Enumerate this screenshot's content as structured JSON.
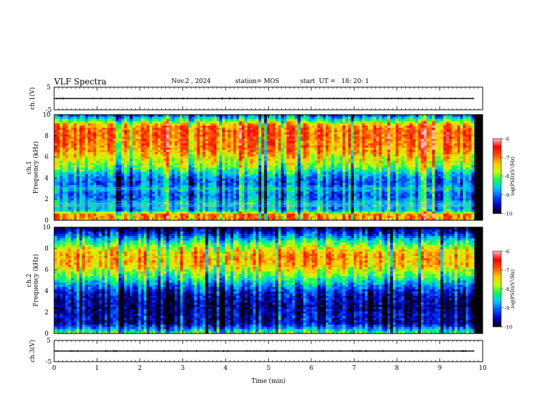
{
  "header": {
    "title": "VLF Spectra",
    "date": "Nov.2  , 2024",
    "station": "station= MOS",
    "start_ut": "start  UT =   18: 20: 1"
  },
  "colors": {
    "spectrogram_colormap": [
      "#000000",
      "#0000cc",
      "#0050ff",
      "#00c8ff",
      "#00ff60",
      "#c8ff00",
      "#ffc800",
      "#ff5000",
      "#ff0000",
      "#ffc0c0"
    ],
    "axis": "#000000",
    "background": "#ffffff"
  },
  "chart_data": [
    {
      "type": "line",
      "panel": "ch1-voltage",
      "ylabel": "ch.1(V)",
      "ylim": [
        -5,
        5
      ],
      "yticks": [
        "5",
        "-5"
      ],
      "x": [
        0,
        9.8
      ],
      "values": [
        0,
        0
      ],
      "xlim": [
        0,
        10
      ]
    },
    {
      "type": "heatmap",
      "panel": "ch1-spectrogram",
      "ylabel": "ch.1\nFrequency (kHz)",
      "ylim": [
        0,
        10
      ],
      "yticks": [
        "0",
        "2",
        "4",
        "6",
        "8",
        "10"
      ],
      "xlim": [
        0,
        10
      ],
      "x_extent": [
        0,
        9.8
      ],
      "colorbar": {
        "label": "log(PSD)(V²/Hz)",
        "range": [
          -10,
          -6
        ],
        "ticks": [
          "-6",
          "-7",
          "-8",
          "-9",
          "-10"
        ]
      },
      "profile": {
        "freq_khz": [
          0,
          0.5,
          1,
          1.5,
          2,
          2.5,
          3,
          3.5,
          4,
          4.5,
          5,
          5.5,
          6,
          6.5,
          7,
          7.5,
          8,
          8.5,
          9,
          9.5,
          10
        ],
        "mean_log_psd": [
          -7.2,
          -7.0,
          -8.8,
          -8.4,
          -8.9,
          -9.0,
          -8.6,
          -9.1,
          -8.9,
          -8.5,
          -8.0,
          -7.7,
          -7.5,
          -7.2,
          -7.0,
          -7.0,
          -6.9,
          -6.9,
          -7.2,
          -8.2,
          -9.2
        ]
      },
      "horizontal_lines_khz": [
        1.3,
        1.5,
        1.8,
        2.9,
        3.1
      ]
    },
    {
      "type": "heatmap",
      "panel": "ch2-spectrogram",
      "ylabel": "ch.2\nFrequency (kHz)",
      "ylim": [
        0,
        10
      ],
      "yticks": [
        "0",
        "2",
        "4",
        "6",
        "8",
        "10"
      ],
      "xlim": [
        0,
        10
      ],
      "x_extent": [
        0,
        9.8
      ],
      "colorbar": {
        "label": "log(PSD)(V²/Hz)",
        "range": [
          -10,
          -6
        ],
        "ticks": [
          "-6",
          "-7",
          "-8",
          "-9",
          "-10"
        ]
      },
      "profile": {
        "freq_khz": [
          0,
          0.5,
          1,
          1.5,
          2,
          2.5,
          3,
          3.5,
          4,
          4.5,
          5,
          5.5,
          6,
          6.5,
          7,
          7.5,
          8,
          8.5,
          9,
          9.5,
          10
        ],
        "mean_log_psd": [
          -8.0,
          -8.9,
          -9.6,
          -9.5,
          -9.6,
          -9.7,
          -9.6,
          -9.5,
          -9.3,
          -8.9,
          -8.4,
          -8.0,
          -7.7,
          -7.3,
          -7.2,
          -7.3,
          -7.6,
          -8.1,
          -8.8,
          -9.4,
          -9.9
        ]
      },
      "horizontal_lines_khz": []
    },
    {
      "type": "line",
      "panel": "ch3-voltage",
      "ylabel": "ch.3(V)",
      "ylim": [
        -5,
        5
      ],
      "yticks": [
        "5",
        "-5"
      ],
      "x": [
        0,
        9.8
      ],
      "values": [
        0,
        0
      ],
      "xlim": [
        0,
        10
      ],
      "xlabel": "Time (min)",
      "xticks": [
        "0",
        "1",
        "2",
        "3",
        "4",
        "5",
        "6",
        "7",
        "8",
        "9",
        "10"
      ]
    }
  ]
}
